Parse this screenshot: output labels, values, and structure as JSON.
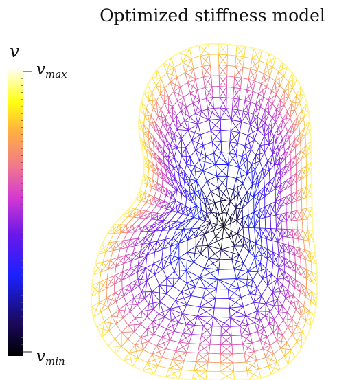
{
  "title": "Optimized stiffness model",
  "colorbar": {
    "variable": "v",
    "max_label_base": "v",
    "max_label_sub": "max",
    "min_label_base": "v",
    "min_label_sub": "min",
    "colormap": "plasma-like",
    "stops": [
      "#000000",
      "#1a0a60",
      "#1a22ff",
      "#6a18e8",
      "#d43ad0",
      "#f07a8a",
      "#ffb040",
      "#ffff10",
      "#ffffff"
    ]
  },
  "mesh": {
    "type": "triangular finite-element mesh",
    "shape": "kidney",
    "coloring": "dark at central node, blue interior, magenta mid ring, yellow at boundary"
  }
}
